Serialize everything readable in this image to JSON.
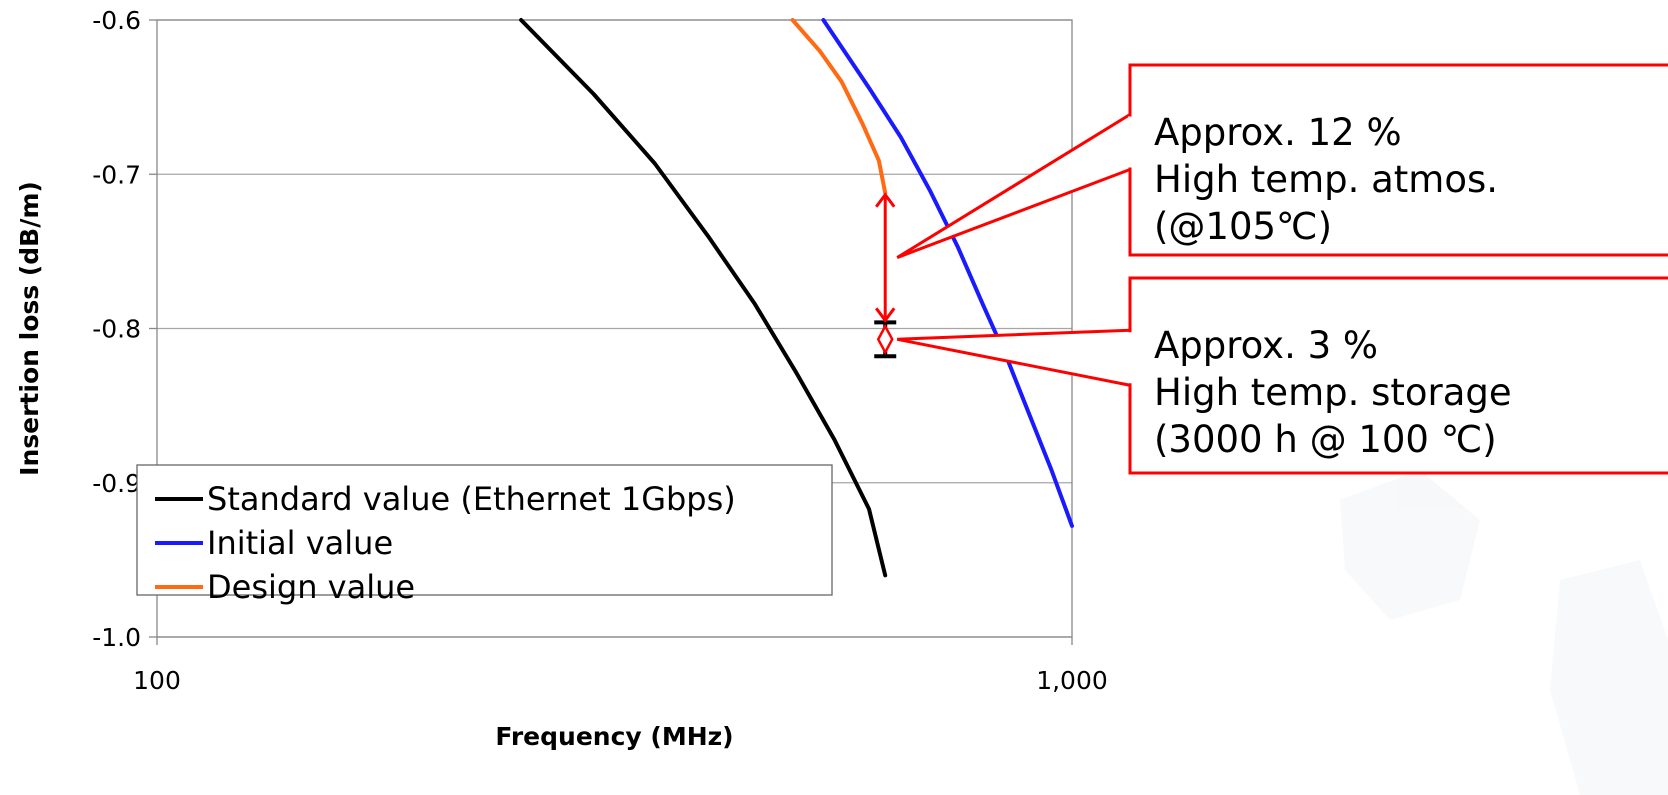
{
  "chart_data": {
    "type": "line",
    "title": "",
    "xlabel": "Frequency (MHz)",
    "ylabel": "Insertion loss (dB/m)",
    "x_scale": "log",
    "xlim": [
      100,
      1000
    ],
    "ylim": [
      -1.0,
      -0.6
    ],
    "x_ticks": [
      "100",
      "1,000"
    ],
    "y_ticks": [
      "-0.6",
      "-0.7",
      "-0.8",
      "-0.9",
      "-1.0"
    ],
    "grid": "horizontal",
    "legend_position": "bottom-left",
    "series": [
      {
        "name": "Standard value (Ethernet 1Gbps)",
        "color": "#000000",
        "points": [
          [
            250,
            -0.6
          ],
          [
            300,
            -0.648
          ],
          [
            350,
            -0.693
          ],
          [
            400,
            -0.74
          ],
          [
            450,
            -0.784
          ],
          [
            500,
            -0.829
          ],
          [
            550,
            -0.872
          ],
          [
            600,
            -0.917
          ],
          [
            625,
            -0.96
          ]
        ]
      },
      {
        "name": "Initial value",
        "color": "#1a1aff",
        "points": [
          [
            535,
            -0.6
          ],
          [
            600,
            -0.644
          ],
          [
            650,
            -0.676
          ],
          [
            700,
            -0.711
          ],
          [
            750,
            -0.747
          ],
          [
            800,
            -0.785
          ],
          [
            850,
            -0.82
          ],
          [
            900,
            -0.857
          ],
          [
            950,
            -0.892
          ],
          [
            1000,
            -0.928
          ]
        ]
      },
      {
        "name": "Design value",
        "color": "#ff6a13",
        "points": [
          [
            495,
            -0.6
          ],
          [
            530,
            -0.62
          ],
          [
            560,
            -0.64
          ],
          [
            590,
            -0.667
          ],
          [
            615,
            -0.691
          ],
          [
            625,
            -0.712
          ]
        ]
      }
    ],
    "error_bar": {
      "x": 625,
      "y_low": -0.818,
      "y_high": -0.796,
      "color": "#000000"
    },
    "markers": [
      {
        "type": "arrow",
        "x": 625,
        "y_from": -0.712,
        "y_to": -0.796,
        "color": "#ff0000"
      },
      {
        "type": "diamond",
        "x": 625,
        "y": -0.807,
        "color": "#ff0000"
      }
    ],
    "annotations": [
      {
        "lines": [
          "Approx. 12 %",
          "High temp. atmos.",
          "(@105℃)"
        ],
        "points_to": [
          625,
          -0.754
        ],
        "color": "#ff0000"
      },
      {
        "lines": [
          "Approx. 3 %",
          "High temp. storage",
          "(3000 h @ 100 ℃)"
        ],
        "points_to": [
          625,
          -0.807
        ],
        "color": "#ff0000"
      }
    ]
  }
}
